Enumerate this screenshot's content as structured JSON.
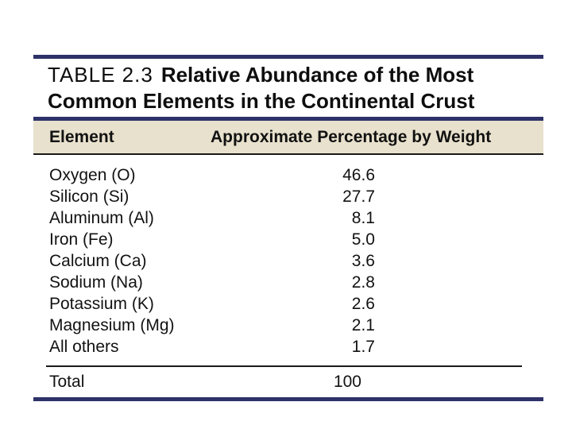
{
  "title": {
    "label": "TABLE 2.3",
    "text": "Relative Abundance of the Most Common Elements in the Continental Crust"
  },
  "table": {
    "columns": [
      "Element",
      "Approximate Percentage by Weight"
    ],
    "rows": [
      {
        "element": "Oxygen (O)",
        "value": "46.6"
      },
      {
        "element": "Silicon (Si)",
        "value": "27.7"
      },
      {
        "element": "Aluminum (Al)",
        "value": "8.1"
      },
      {
        "element": "Iron (Fe)",
        "value": "5.0"
      },
      {
        "element": "Calcium (Ca)",
        "value": "3.6"
      },
      {
        "element": "Sodium (Na)",
        "value": "2.8"
      },
      {
        "element": "Potassium (K)",
        "value": "2.6"
      },
      {
        "element": "Magnesium (Mg)",
        "value": "2.1"
      },
      {
        "element": "All others",
        "value": "1.7"
      }
    ],
    "total": {
      "label": "Total",
      "value": "100"
    }
  },
  "colors": {
    "rule_navy": "#2e3269",
    "header_band": "#e8e1cd",
    "text": "#121212"
  },
  "chart_data": {
    "type": "table",
    "title": "TABLE 2.3 Relative Abundance of the Most Common Elements in the Continental Crust",
    "columns": [
      "Element",
      "Approximate Percentage by Weight"
    ],
    "rows": [
      [
        "Oxygen (O)",
        46.6
      ],
      [
        "Silicon (Si)",
        27.7
      ],
      [
        "Aluminum (Al)",
        8.1
      ],
      [
        "Iron (Fe)",
        5.0
      ],
      [
        "Calcium (Ca)",
        3.6
      ],
      [
        "Sodium (Na)",
        2.8
      ],
      [
        "Potassium (K)",
        2.6
      ],
      [
        "Magnesium (Mg)",
        2.1
      ],
      [
        "All others",
        1.7
      ]
    ],
    "total_row": [
      "Total",
      100
    ]
  }
}
